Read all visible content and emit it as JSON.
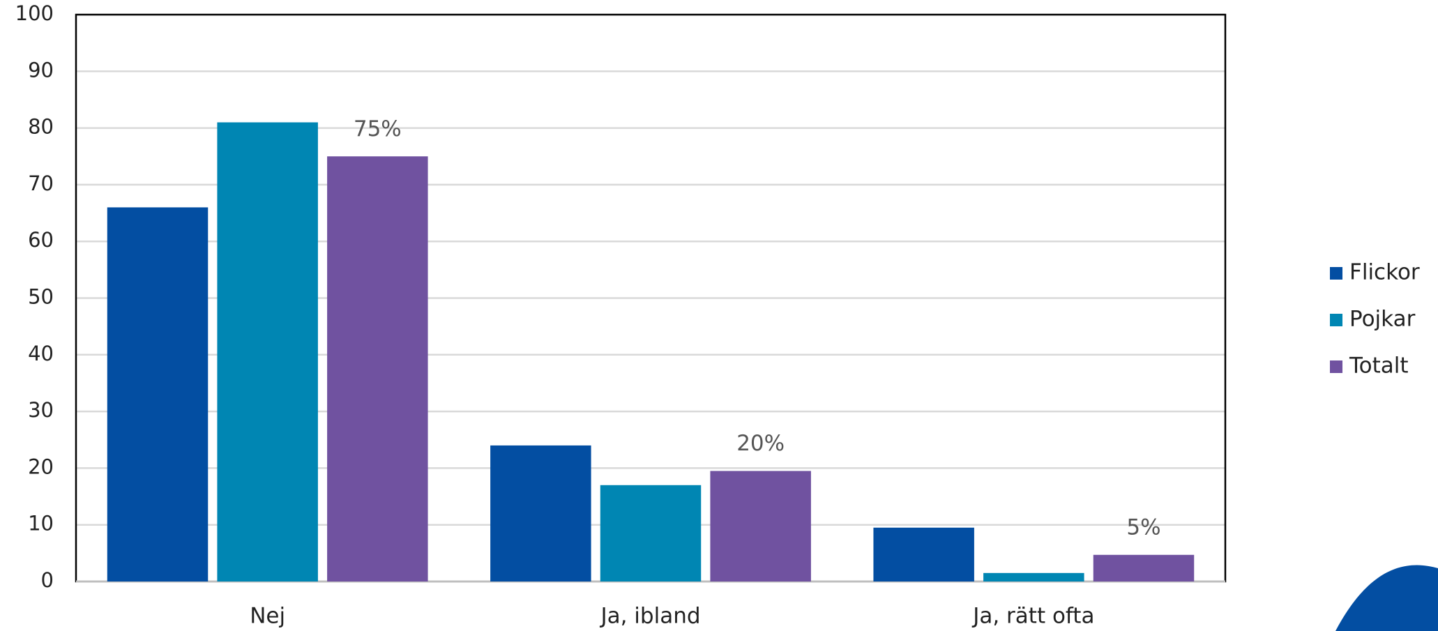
{
  "chart_data": {
    "type": "bar",
    "categories": [
      "Nej",
      "Ja, ibland",
      "Ja, rätt ofta"
    ],
    "series": [
      {
        "name": "Flickor",
        "color": "#034ea2",
        "values": [
          66,
          24,
          9.5
        ]
      },
      {
        "name": "Pojkar",
        "color": "#0086b3",
        "values": [
          81,
          17,
          1.5
        ]
      },
      {
        "name": "Totalt",
        "color": "#7052a0",
        "values": [
          75,
          19.5,
          4.7
        ],
        "value_labels": [
          "75%",
          "20%",
          "5%"
        ]
      }
    ],
    "ylim": [
      0,
      100
    ],
    "yticks": [
      0,
      10,
      20,
      30,
      40,
      50,
      60,
      70,
      80,
      90,
      100
    ],
    "grid": true,
    "legend": "right"
  }
}
